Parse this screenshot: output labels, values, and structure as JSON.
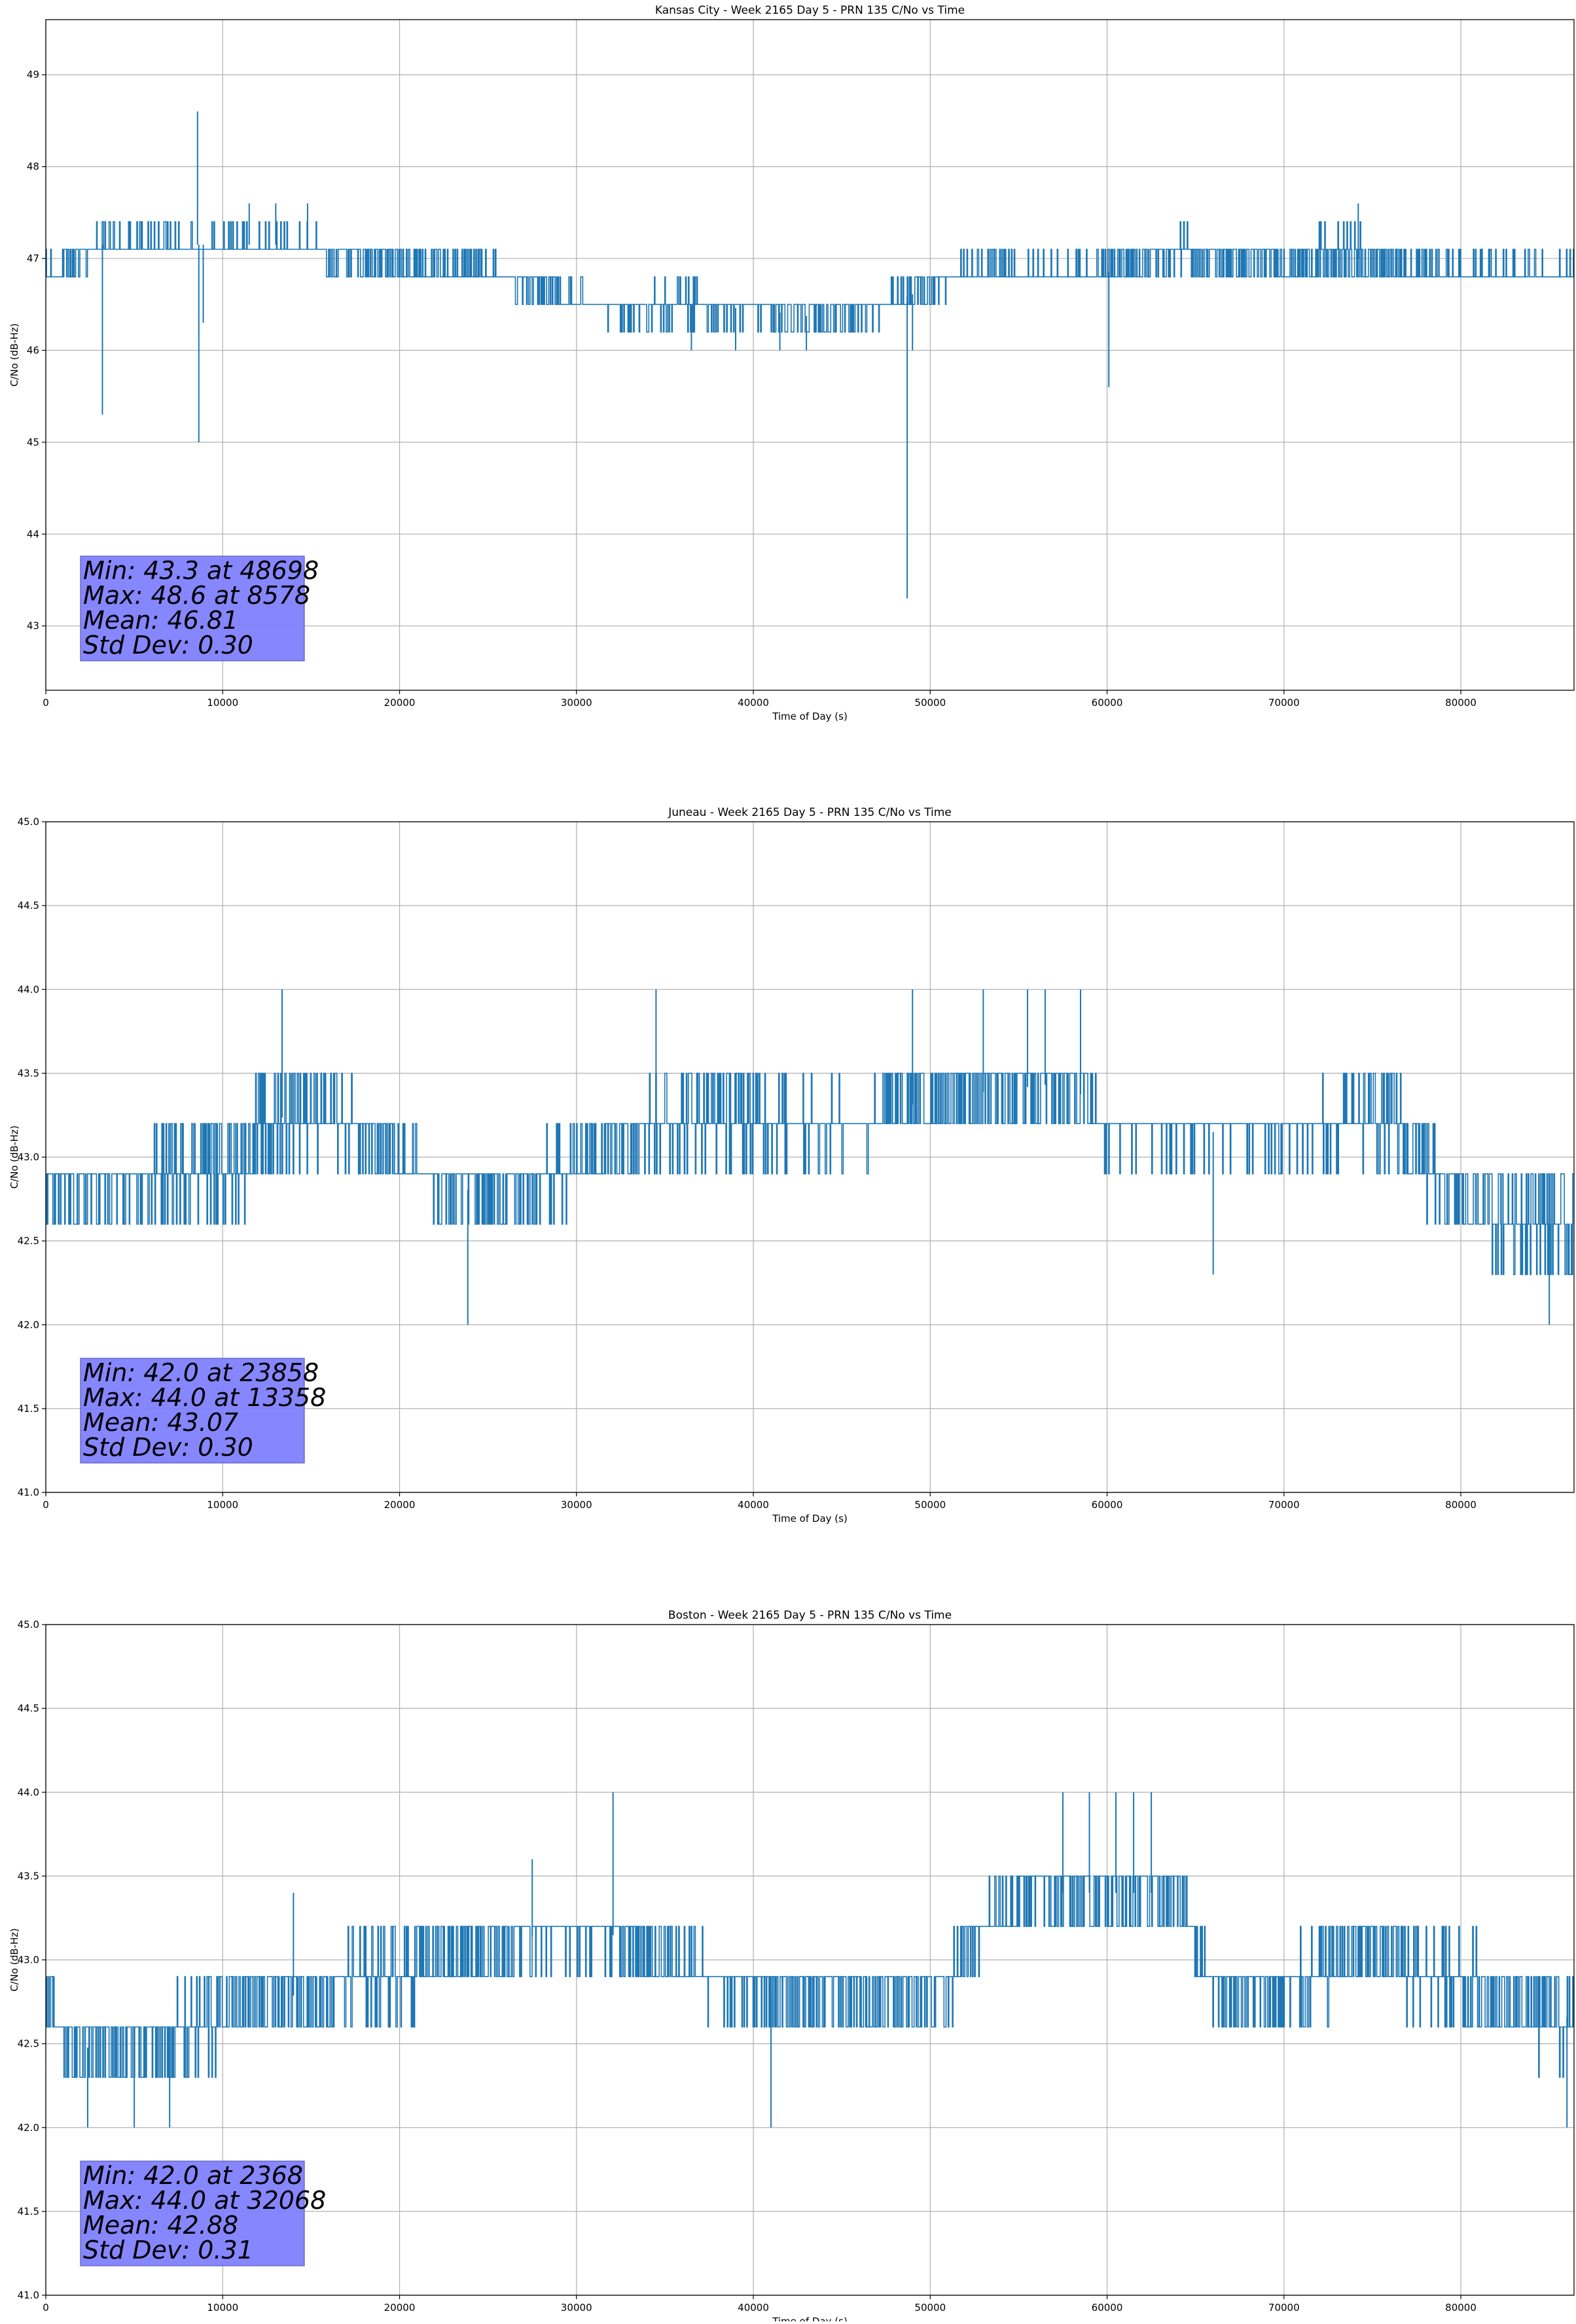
{
  "colors": {
    "series": "#1f77b4",
    "stats_box_fill": "#8080ff",
    "stats_box_edge": "#5a5ab4",
    "grid": "#b0b0b0",
    "axis": "#000000",
    "background": "#ffffff"
  },
  "chart_data": [
    {
      "type": "line",
      "title": "Kansas City - Week 2165 Day 5 - PRN 135 C/No vs Time",
      "xlabel": "Time of Day (s)",
      "ylabel": "C/No (dB-Hz)",
      "xlim": [
        0,
        86400
      ],
      "ylim": [
        42.3,
        49.6
      ],
      "xticks": [
        0,
        10000,
        20000,
        30000,
        40000,
        50000,
        60000,
        70000,
        80000
      ],
      "yticks": [
        43,
        44,
        45,
        46,
        47,
        48,
        49
      ],
      "grid": true,
      "resolution": 0.3,
      "segments": [
        {
          "x": [
            0,
            500,
            3000,
            8500,
            14000,
            20000,
            25000,
            28000,
            32000,
            36000,
            40000,
            44000,
            47000,
            52000,
            60000,
            64000,
            68000,
            74000,
            80000,
            86400
          ],
          "lo": [
            46.7,
            46.7,
            47.0,
            47.0,
            47.0,
            46.7,
            46.7,
            46.5,
            46.3,
            46.3,
            46.3,
            46.2,
            46.3,
            46.7,
            46.7,
            46.9,
            46.7,
            46.7,
            46.7,
            46.7
          ],
          "hi": [
            47.0,
            47.0,
            47.3,
            47.3,
            47.3,
            47.1,
            47.0,
            46.8,
            46.6,
            46.7,
            46.6,
            46.5,
            46.6,
            47.0,
            47.0,
            47.3,
            47.2,
            47.3,
            47.0,
            47.0
          ]
        }
      ],
      "spikes": [
        {
          "x": 3200,
          "y": 45.3
        },
        {
          "x": 8578,
          "y": 48.6
        },
        {
          "x": 8650,
          "y": 45.0
        },
        {
          "x": 8900,
          "y": 46.3
        },
        {
          "x": 11500,
          "y": 47.6
        },
        {
          "x": 13000,
          "y": 47.6
        },
        {
          "x": 14800,
          "y": 47.6
        },
        {
          "x": 36500,
          "y": 46.0
        },
        {
          "x": 39000,
          "y": 46.0
        },
        {
          "x": 41500,
          "y": 46.0
        },
        {
          "x": 43000,
          "y": 46.0
        },
        {
          "x": 48698,
          "y": 43.3
        },
        {
          "x": 49000,
          "y": 46.0
        },
        {
          "x": 60100,
          "y": 45.6
        },
        {
          "x": 74200,
          "y": 47.6
        }
      ],
      "stats": [
        "Min: 43.3 at 48698",
        "Max: 48.6 at 8578",
        "Mean: 46.81",
        "Std Dev: 0.30"
      ]
    },
    {
      "type": "line",
      "title": "Juneau - Week 2165 Day 5 - PRN 135 C/No vs Time",
      "xlabel": "Time of Day (s)",
      "ylabel": "C/No (dB-Hz)",
      "xlim": [
        0,
        86400
      ],
      "ylim": [
        41.0,
        45.0
      ],
      "xticks": [
        0,
        10000,
        20000,
        30000,
        40000,
        50000,
        60000,
        70000,
        80000
      ],
      "yticks": [
        41.0,
        41.5,
        42.0,
        42.5,
        43.0,
        43.5,
        44.0,
        44.5,
        45.0
      ],
      "grid": true,
      "resolution": 0.3,
      "segments": [
        {
          "x": [
            0,
            4000,
            8000,
            11000,
            14000,
            18000,
            22000,
            26000,
            29000,
            33000,
            37000,
            42000,
            46000,
            50000,
            54000,
            58000,
            60000,
            64000,
            70000,
            76000,
            79000,
            82000,
            86400
          ],
          "lo": [
            42.6,
            42.6,
            42.7,
            42.7,
            43.0,
            43.0,
            42.7,
            42.5,
            42.7,
            43.0,
            43.0,
            43.0,
            43.0,
            43.1,
            43.2,
            43.3,
            43.0,
            43.0,
            43.0,
            43.0,
            42.6,
            42.4,
            42.3
          ],
          "hi": [
            43.0,
            43.0,
            43.2,
            43.3,
            43.6,
            43.3,
            43.0,
            43.0,
            43.1,
            43.3,
            43.6,
            43.4,
            43.4,
            43.6,
            43.6,
            43.6,
            43.3,
            43.3,
            43.3,
            43.5,
            43.0,
            43.0,
            42.9
          ]
        }
      ],
      "spikes": [
        {
          "x": 13358,
          "y": 44.0
        },
        {
          "x": 23858,
          "y": 42.0
        },
        {
          "x": 34500,
          "y": 44.0
        },
        {
          "x": 49000,
          "y": 44.0
        },
        {
          "x": 53000,
          "y": 44.0
        },
        {
          "x": 55500,
          "y": 44.0
        },
        {
          "x": 56500,
          "y": 44.0
        },
        {
          "x": 58500,
          "y": 44.0
        },
        {
          "x": 66000,
          "y": 42.3
        },
        {
          "x": 85000,
          "y": 42.0
        }
      ],
      "stats": [
        "Min: 42.0 at 23858",
        "Max: 44.0 at 13358",
        "Mean: 43.07",
        "Std Dev: 0.30"
      ]
    },
    {
      "type": "line",
      "title": "Boston - Week 2165 Day 5 - PRN 135 C/No vs Time",
      "xlabel": "Time of Day (s)",
      "ylabel": "C/No (dB-Hz)",
      "xlim": [
        0,
        86400
      ],
      "ylim": [
        41.0,
        45.0
      ],
      "xticks": [
        0,
        10000,
        20000,
        30000,
        40000,
        50000,
        60000,
        70000,
        80000
      ],
      "yticks": [
        41.0,
        41.5,
        42.0,
        42.5,
        43.0,
        43.5,
        44.0,
        44.5,
        45.0
      ],
      "grid": true,
      "resolution": 0.3,
      "segments": [
        {
          "x": [
            0,
            1000,
            4000,
            8000,
            11000,
            15000,
            20000,
            24000,
            28000,
            32000,
            36000,
            40000,
            44000,
            48000,
            51000,
            53000,
            56000,
            60000,
            64000,
            66000,
            70000,
            74000,
            78000,
            82000,
            86400
          ],
          "lo": [
            42.6,
            42.4,
            42.3,
            42.3,
            42.5,
            42.6,
            42.7,
            42.8,
            43.0,
            43.0,
            42.8,
            42.6,
            42.6,
            42.6,
            42.7,
            43.0,
            43.2,
            43.2,
            43.2,
            42.7,
            42.6,
            42.8,
            42.7,
            42.5,
            42.4
          ],
          "hi": [
            43.0,
            42.6,
            42.6,
            42.8,
            43.0,
            43.0,
            43.2,
            43.3,
            43.3,
            43.3,
            43.1,
            43.0,
            43.0,
            43.0,
            43.0,
            43.4,
            43.6,
            43.6,
            43.6,
            43.0,
            43.0,
            43.3,
            43.2,
            43.0,
            42.9
          ]
        }
      ],
      "spikes": [
        {
          "x": 2368,
          "y": 42.0
        },
        {
          "x": 5000,
          "y": 42.0
        },
        {
          "x": 7000,
          "y": 42.0
        },
        {
          "x": 14000,
          "y": 43.4
        },
        {
          "x": 27500,
          "y": 43.6
        },
        {
          "x": 32068,
          "y": 44.0
        },
        {
          "x": 41000,
          "y": 42.0
        },
        {
          "x": 57500,
          "y": 44.0
        },
        {
          "x": 59000,
          "y": 44.0
        },
        {
          "x": 60500,
          "y": 44.0
        },
        {
          "x": 61500,
          "y": 44.0
        },
        {
          "x": 62500,
          "y": 44.0
        },
        {
          "x": 86000,
          "y": 42.0
        }
      ],
      "stats": [
        "Min: 42.0 at 2368",
        "Max: 44.0 at 32068",
        "Mean: 42.88",
        "Std Dev: 0.31"
      ]
    }
  ]
}
